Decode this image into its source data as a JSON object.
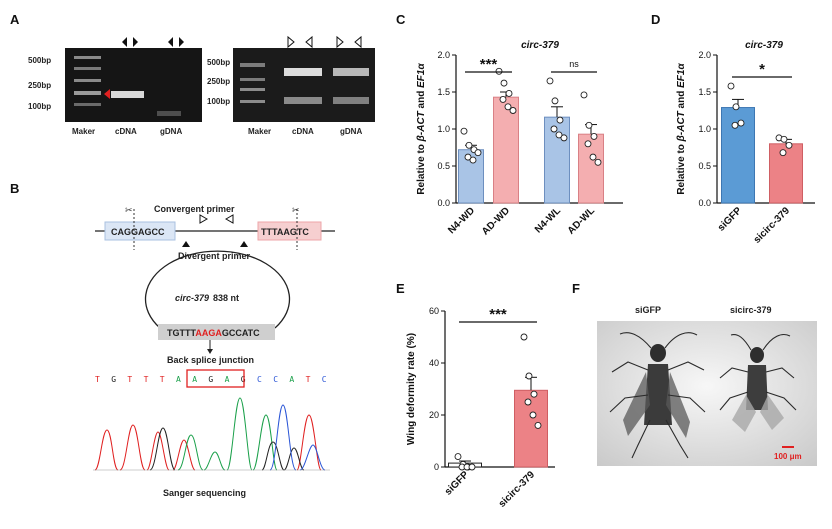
{
  "panels": {
    "a": {
      "label": "A",
      "gel_left": {
        "ladder": [
          "500bp",
          "250bp",
          "100bp"
        ],
        "lanes": [
          "Maker",
          "cDNA",
          "gDNA"
        ]
      },
      "gel_right": {
        "ladder": [
          "500bp",
          "250bp",
          "100bp"
        ],
        "lanes": [
          "Maker",
          "cDNA",
          "gDNA"
        ]
      }
    },
    "b": {
      "label": "B",
      "convergent_primer": "Convergent primer",
      "divergent_primer": "Divergent primer",
      "seq_left": "CAGGAGCC",
      "seq_right_1": "TTTAA",
      "seq_right_2": "GTC",
      "circ_name": "circ-379",
      "circ_length": "838 nt",
      "junction_parts": [
        "TGTTT",
        "AAGA",
        "GCCATC"
      ],
      "back_splice_label": "Back splice junction",
      "chromatogram_letters": [
        "T",
        "G",
        "T",
        "T",
        "T",
        "A",
        "A",
        "G",
        "A",
        "G",
        "C",
        "C",
        "A",
        "T",
        "C"
      ],
      "sanger_label": "Sanger sequencing"
    },
    "c": {
      "label": "C"
    },
    "d": {
      "label": "D"
    },
    "e": {
      "label": "E"
    },
    "f": {
      "label": "F",
      "left_label": "siGFP",
      "right_label": "sicirc-379",
      "scale_bar": "100 μm"
    }
  },
  "colors": {
    "blue": "#a9c4e6",
    "pink": "#f4aeb0",
    "blue_dark": "#5b9bd5",
    "pink_dark": "#ec8286",
    "red": "#e02020"
  },
  "chart_data": [
    {
      "id": "C",
      "type": "bar",
      "title": "circ-379",
      "ylabel": "Relative to β-ACT and EF1α",
      "categories": [
        "N4-WD",
        "AD-WD",
        "N4-WL",
        "AD-WL"
      ],
      "values": [
        0.72,
        1.43,
        1.16,
        0.93
      ],
      "errors": [
        0.06,
        0.07,
        0.14,
        0.13
      ],
      "points": [
        [
          0.97,
          0.78,
          0.72,
          0.62,
          0.58,
          0.68
        ],
        [
          1.78,
          1.62,
          1.48,
          1.4,
          1.3,
          1.25
        ],
        [
          1.65,
          1.38,
          1.12,
          1.0,
          0.92,
          0.88
        ],
        [
          1.46,
          1.05,
          0.9,
          0.8,
          0.62,
          0.55
        ]
      ],
      "yticks": [
        0.0,
        0.5,
        1.0,
        1.5,
        2.0
      ],
      "ylim": [
        0,
        2.0
      ],
      "significance": [
        {
          "pair": [
            0,
            1
          ],
          "label": "***"
        },
        {
          "pair": [
            2,
            3
          ],
          "label": "ns"
        }
      ]
    },
    {
      "id": "D",
      "type": "bar",
      "title": "circ-379",
      "ylabel": "Relative to β-ACT and EF1α",
      "categories": [
        "siGFP",
        "sicirc-379"
      ],
      "values": [
        1.29,
        0.8
      ],
      "errors": [
        0.11,
        0.06
      ],
      "points": [
        [
          1.58,
          1.3,
          1.08,
          1.05
        ],
        [
          0.88,
          0.86,
          0.78,
          0.68
        ]
      ],
      "yticks": [
        0.0,
        0.5,
        1.0,
        1.5,
        2.0
      ],
      "ylim": [
        0,
        2.0
      ],
      "significance": [
        {
          "pair": [
            0,
            1
          ],
          "label": "*"
        }
      ]
    },
    {
      "id": "E",
      "type": "bar",
      "title": "",
      "ylabel": "Wing deformity rate (%)",
      "categories": [
        "siGFP",
        "sicirc-379"
      ],
      "values": [
        1.5,
        29.5
      ],
      "errors": [
        0.8,
        5.0
      ],
      "points": [
        [
          4.0,
          1.0,
          0.0,
          0.0,
          0.0,
          0.0
        ],
        [
          50.0,
          35.0,
          28.0,
          25.0,
          20.0,
          16.0
        ]
      ],
      "yticks": [
        0,
        20,
        40,
        60
      ],
      "ylim": [
        0,
        60
      ],
      "significance": [
        {
          "pair": [
            0,
            1
          ],
          "label": "***"
        }
      ]
    }
  ]
}
